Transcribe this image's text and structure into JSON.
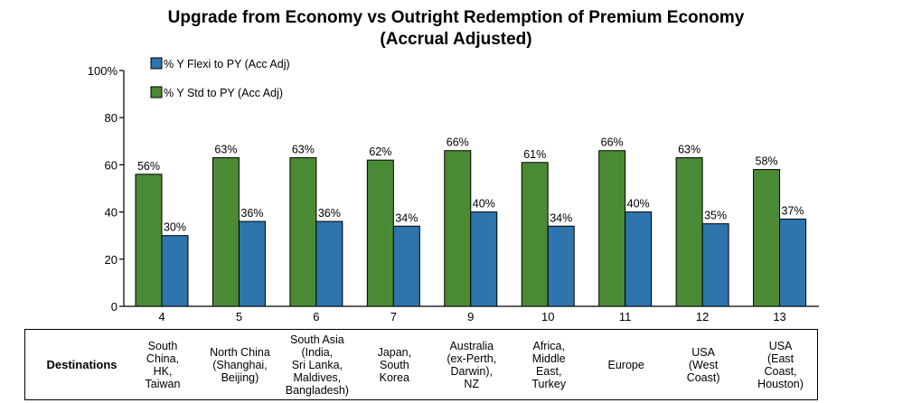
{
  "chart_data": {
    "type": "bar",
    "title": "Upgrade from Economy vs Outright Redemption of Premium Economy",
    "subtitle": "(Accrual Adjusted)",
    "categories": [
      "4",
      "5",
      "6",
      "7",
      "9",
      "10",
      "11",
      "12",
      "13"
    ],
    "series": [
      {
        "name": "% Y Std to PY (Acc Adj)",
        "color": "#4a8a35",
        "values": [
          56,
          63,
          63,
          62,
          66,
          61,
          66,
          63,
          58
        ],
        "labels": [
          "56%",
          "63%",
          "63%",
          "62%",
          "66%",
          "61%",
          "66%",
          "63%",
          "58%"
        ]
      },
      {
        "name": "% Y Flexi to PY (Acc Adj)",
        "color": "#2e74ad",
        "values": [
          30,
          36,
          36,
          34,
          40,
          34,
          40,
          35,
          37
        ],
        "labels": [
          "30%",
          "36%",
          "36%",
          "34%",
          "40%",
          "34%",
          "40%",
          "35%",
          "37%"
        ]
      }
    ],
    "legend": [
      "% Y Flexi to PY (Acc Adj)",
      "% Y Std to PY (Acc Adj)"
    ],
    "legend_position": "top-left",
    "ylim": [
      0,
      100
    ],
    "yticks": [
      "0",
      "20",
      "40",
      "60",
      "80",
      "100%"
    ],
    "xlabel": "",
    "ylabel": "",
    "grid": false
  },
  "table": {
    "row_label": "Destinations",
    "destinations": [
      "South\nChina,\nHK,\nTaiwan",
      "North China\n(Shanghai,\nBeijing)",
      "South Asia\n(India,\nSri Lanka,\nMaldives,\nBangladesh)",
      "Japan,\nSouth\nKorea",
      "Australia\n(ex-Perth,\nDarwin),\nNZ",
      "Africa,\nMiddle\nEast,\nTurkey",
      "Europe",
      "USA\n(West\nCoast)",
      "USA\n(East\nCoast,\nHouston)"
    ]
  }
}
